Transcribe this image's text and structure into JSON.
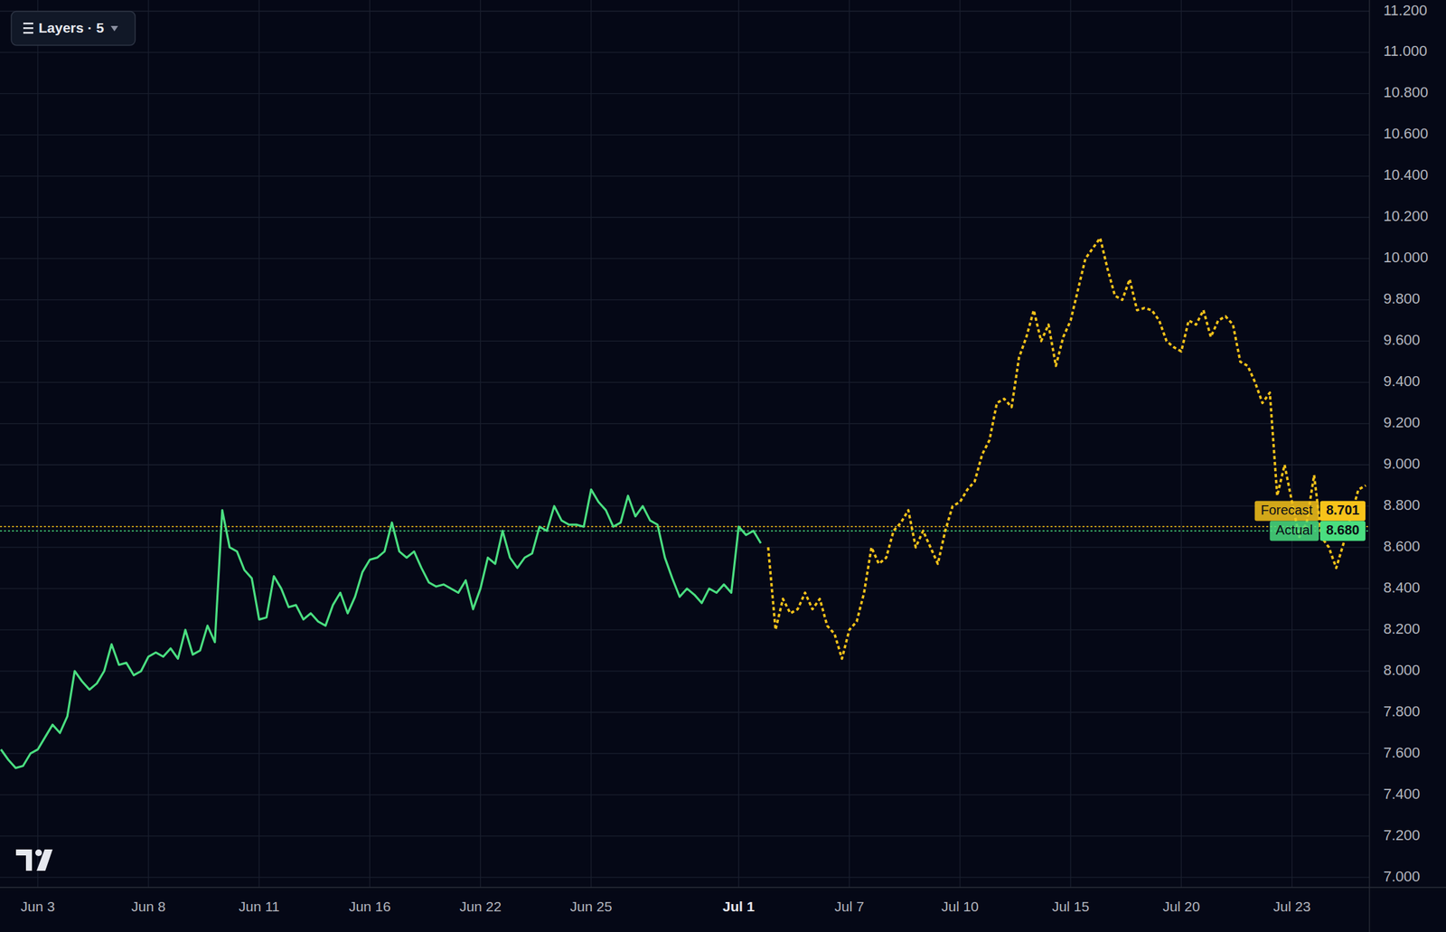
{
  "chart_data": {
    "type": "line",
    "layers_label": "Layers · 5",
    "categories": [
      null,
      null,
      null,
      null,
      null,
      "Jun 3",
      null,
      null,
      null,
      null,
      null,
      null,
      null,
      null,
      null,
      null,
      null,
      null,
      null,
      null,
      "Jun 8",
      null,
      null,
      null,
      null,
      null,
      null,
      null,
      null,
      null,
      null,
      null,
      null,
      null,
      null,
      "Jun 11",
      null,
      null,
      null,
      null,
      null,
      null,
      null,
      null,
      null,
      null,
      null,
      null,
      null,
      null,
      "Jun 16",
      null,
      null,
      null,
      null,
      null,
      null,
      null,
      null,
      null,
      null,
      null,
      null,
      null,
      null,
      "Jun 22",
      null,
      null,
      null,
      null,
      null,
      null,
      null,
      null,
      null,
      null,
      null,
      null,
      null,
      null,
      "Jun 25",
      null,
      null,
      null,
      null,
      null,
      null,
      null,
      null,
      null,
      null,
      null,
      null,
      null,
      null,
      null,
      null,
      null,
      null,
      null,
      "Jul 1",
      null,
      null,
      null,
      null,
      null,
      null,
      null,
      null,
      null,
      null,
      null,
      null,
      null,
      null,
      "Jul 7",
      null,
      null,
      null,
      null,
      null,
      null,
      null,
      null,
      null,
      null,
      null,
      null,
      null,
      null,
      "Jul 10",
      null,
      null,
      null,
      null,
      null,
      null,
      null,
      null,
      null,
      null,
      null,
      null,
      null,
      null,
      "Jul 15",
      null,
      null,
      null,
      null,
      null,
      null,
      null,
      null,
      null,
      null,
      null,
      null,
      null,
      null,
      "Jul 20",
      null,
      null,
      null,
      null,
      null,
      null,
      null,
      null,
      null,
      null,
      null,
      null,
      null,
      null,
      "Jul 23",
      null,
      null,
      null,
      null,
      null,
      null,
      null,
      null,
      null,
      null
    ],
    "series": [
      {
        "name": "Actual",
        "color": "#4ade80",
        "line_style": "solid",
        "price_line": {
          "value": 8.68,
          "label": "8.680"
        },
        "values": [
          7.62,
          7.57,
          7.53,
          7.54,
          7.6,
          7.62,
          7.68,
          7.74,
          7.7,
          7.78,
          8.0,
          7.95,
          7.91,
          7.94,
          8.0,
          8.13,
          8.03,
          8.04,
          7.98,
          8.0,
          8.07,
          8.09,
          8.07,
          8.11,
          8.06,
          8.2,
          8.08,
          8.1,
          8.22,
          8.14,
          8.78,
          8.6,
          8.58,
          8.49,
          8.45,
          8.25,
          8.26,
          8.46,
          8.4,
          8.31,
          8.32,
          8.25,
          8.28,
          8.24,
          8.22,
          8.32,
          8.38,
          8.28,
          8.36,
          8.48,
          8.54,
          8.55,
          8.58,
          8.72,
          8.58,
          8.55,
          8.58,
          8.5,
          8.43,
          8.41,
          8.42,
          8.4,
          8.38,
          8.44,
          8.3,
          8.4,
          8.55,
          8.52,
          8.68,
          8.55,
          8.5,
          8.55,
          8.57,
          8.7,
          8.68,
          8.8,
          8.73,
          8.71,
          8.71,
          8.7,
          8.88,
          8.82,
          8.78,
          8.7,
          8.72,
          8.85,
          8.75,
          8.8,
          8.73,
          8.71,
          8.55,
          8.45,
          8.36,
          8.4,
          8.37,
          8.33,
          8.4,
          8.38,
          8.42,
          8.38,
          8.7,
          8.66,
          8.68,
          8.62,
          null,
          null,
          null,
          null,
          null,
          null,
          null,
          null,
          null,
          null,
          null,
          null,
          null,
          null,
          null,
          null,
          null,
          null,
          null,
          null,
          null,
          null,
          null,
          null,
          null,
          null,
          null,
          null,
          null,
          null,
          null,
          null,
          null,
          null,
          null,
          null,
          null,
          null,
          null,
          null,
          null,
          null,
          null,
          null,
          null,
          null,
          null,
          null,
          null,
          null,
          null,
          null,
          null,
          null,
          null,
          null,
          null,
          null,
          null,
          null,
          null,
          null,
          null,
          null,
          null,
          null,
          null,
          null,
          null,
          null,
          null,
          null,
          null,
          null,
          null,
          null,
          null,
          null,
          null,
          null,
          null,
          null
        ]
      },
      {
        "name": "Forecast",
        "color": "#f7c31a",
        "line_style": "dotted",
        "price_line": {
          "value": 8.701,
          "label": "8.701"
        },
        "values": [
          null,
          null,
          null,
          null,
          null,
          null,
          null,
          null,
          null,
          null,
          null,
          null,
          null,
          null,
          null,
          null,
          null,
          null,
          null,
          null,
          null,
          null,
          null,
          null,
          null,
          null,
          null,
          null,
          null,
          null,
          null,
          null,
          null,
          null,
          null,
          null,
          null,
          null,
          null,
          null,
          null,
          null,
          null,
          null,
          null,
          null,
          null,
          null,
          null,
          null,
          null,
          null,
          null,
          null,
          null,
          null,
          null,
          null,
          null,
          null,
          null,
          null,
          null,
          null,
          null,
          null,
          null,
          null,
          null,
          null,
          null,
          null,
          null,
          null,
          null,
          null,
          null,
          null,
          null,
          null,
          null,
          null,
          null,
          null,
          null,
          null,
          null,
          null,
          null,
          null,
          null,
          null,
          null,
          null,
          null,
          null,
          null,
          null,
          null,
          null,
          null,
          null,
          null,
          null,
          8.6,
          8.2,
          8.35,
          8.28,
          8.3,
          8.38,
          8.3,
          8.35,
          8.22,
          8.18,
          8.06,
          8.2,
          8.24,
          8.38,
          8.6,
          8.52,
          8.55,
          8.68,
          8.72,
          8.78,
          8.6,
          8.68,
          8.6,
          8.52,
          8.68,
          8.8,
          8.82,
          8.88,
          8.92,
          9.05,
          9.12,
          9.3,
          9.32,
          9.28,
          9.52,
          9.62,
          9.75,
          9.6,
          9.68,
          9.48,
          9.62,
          9.7,
          9.85,
          10.0,
          10.05,
          10.1,
          9.95,
          9.82,
          9.8,
          9.9,
          9.75,
          9.76,
          9.75,
          9.7,
          9.6,
          9.57,
          9.55,
          9.7,
          9.68,
          9.75,
          9.62,
          9.7,
          9.72,
          9.68,
          9.5,
          9.48,
          9.4,
          9.3,
          9.35,
          8.85,
          9.0,
          8.82,
          8.65,
          8.72,
          8.95,
          8.65,
          8.6,
          8.5,
          8.62,
          8.75,
          8.88,
          8.9
        ]
      }
    ],
    "ylim": [
      6.951,
      11.254
    ],
    "yticks": [
      {
        "value": 7,
        "label": "7.000"
      },
      {
        "value": 7.2,
        "label": "7.200"
      },
      {
        "value": 7.4,
        "label": "7.400"
      },
      {
        "value": 7.6,
        "label": "7.600"
      },
      {
        "value": 7.8,
        "label": "7.800"
      },
      {
        "value": 8,
        "label": "8.000"
      },
      {
        "value": 8.2,
        "label": "8.200"
      },
      {
        "value": 8.4,
        "label": "8.400"
      },
      {
        "value": 8.6,
        "label": "8.600"
      },
      {
        "value": 8.8,
        "label": "8.800"
      },
      {
        "value": 9,
        "label": "9.000"
      },
      {
        "value": 9.2,
        "label": "9.200"
      },
      {
        "value": 9.4,
        "label": "9.400"
      },
      {
        "value": 9.6,
        "label": "9.600"
      },
      {
        "value": 9.8,
        "label": "9.800"
      },
      {
        "value": 10,
        "label": "10.000"
      },
      {
        "value": 10.2,
        "label": "10.200"
      },
      {
        "value": 10.4,
        "label": "10.400"
      },
      {
        "value": 10.6,
        "label": "10.600"
      },
      {
        "value": 10.8,
        "label": "10.800"
      },
      {
        "value": 11,
        "label": "11.000"
      },
      {
        "value": 11.2,
        "label": "11.200"
      }
    ],
    "grid": true
  }
}
